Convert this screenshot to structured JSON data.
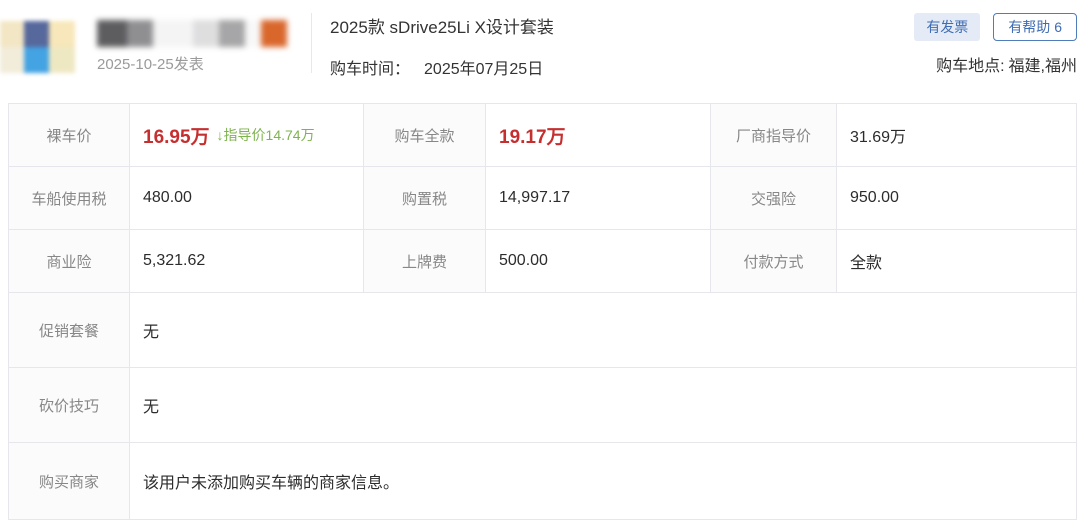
{
  "header": {
    "user": {
      "avatar": "blurred-user-avatar",
      "username": "blurred-username",
      "date_posted": "2025-10-25发表"
    },
    "title": "2025款 sDrive25Li X设计套装",
    "purchase_time": {
      "label": "购车时间：",
      "value": "2025年07月25日"
    },
    "badges": {
      "invoice": "有发票",
      "helpful": "有帮助 6"
    },
    "location": {
      "label": "购车地点:",
      "value": "福建,福州"
    }
  },
  "table": {
    "rows": [
      [
        {
          "label": "裸车价",
          "value": "16.95万",
          "note": "↓指导价14.74万"
        },
        {
          "label": "购车全款",
          "value": "19.17万"
        },
        {
          "label": "厂商指导价",
          "value": "31.69万"
        }
      ],
      [
        {
          "label": "车船使用税",
          "value": "480.00"
        },
        {
          "label": "购置税",
          "value": "14,997.17"
        },
        {
          "label": "交强险",
          "value": "950.00"
        }
      ],
      [
        {
          "label": "商业险",
          "value": "5,321.62"
        },
        {
          "label": "上牌费",
          "value": "500.00"
        },
        {
          "label": "付款方式",
          "value": "全款"
        }
      ]
    ],
    "full_rows": [
      {
        "label": "促销套餐",
        "value": "无"
      },
      {
        "label": "砍价技巧",
        "value": "无"
      },
      {
        "label": "购买商家",
        "value": "该用户未添加购买车辆的商家信息。"
      }
    ]
  },
  "colors": {
    "price_red": "#c62f2f",
    "discount_green": "#7fb34e",
    "badge_blue": "#3f6cb3",
    "badge_bg": "#e4ebf6",
    "border_gray": "#e6e7ec",
    "label_gray": "#878787"
  }
}
